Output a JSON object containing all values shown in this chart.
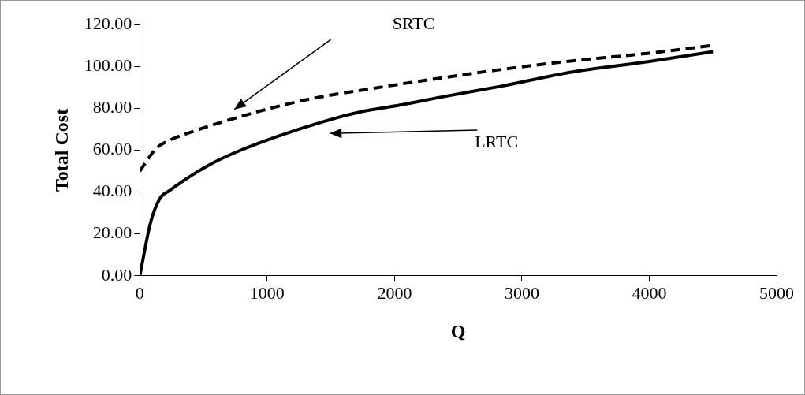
{
  "chart_data": {
    "type": "line",
    "xlabel": "Q",
    "ylabel": "Total Cost",
    "xlim": [
      0,
      5000
    ],
    "xticks": [
      0,
      1000,
      2000,
      3000,
      4000,
      5000
    ],
    "ylim": [
      0,
      120
    ],
    "yticks": [
      {
        "value": 0,
        "label": "0.00"
      },
      {
        "value": 20,
        "label": "20.00"
      },
      {
        "value": 40,
        "label": "40.00"
      },
      {
        "value": 60,
        "label": "60.00"
      },
      {
        "value": 80,
        "label": "80.00"
      },
      {
        "value": 100,
        "label": "100.00"
      },
      {
        "value": 120,
        "label": "120.00"
      }
    ],
    "grid": false,
    "legend": false,
    "marker": "none",
    "series": [
      {
        "name": "SRTC",
        "color": "#000000",
        "line_style": "dashed",
        "x": [
          0,
          129,
          194,
          452,
          774,
          1097,
          1419,
          1763,
          2043,
          2409,
          2837,
          3398,
          4000,
          4500
        ],
        "values": [
          50,
          60.8,
          63.5,
          69.6,
          75.7,
          81.1,
          85.4,
          88.8,
          91.5,
          94.8,
          98.5,
          102.6,
          106.3,
          110
        ]
      },
      {
        "name": "LRTC",
        "color": "#000000",
        "line_style": "solid",
        "x": [
          0,
          86,
          161,
          237,
          323,
          559,
          774,
          1097,
          1419,
          1742,
          2043,
          2409,
          2837,
          3398,
          4000,
          4500
        ],
        "values": [
          0,
          25.7,
          37.2,
          40.8,
          44.6,
          53.4,
          59.5,
          66.9,
          73.2,
          78.4,
          81.5,
          85.8,
          90.5,
          97.3,
          102.3,
          107
        ]
      }
    ]
  }
}
